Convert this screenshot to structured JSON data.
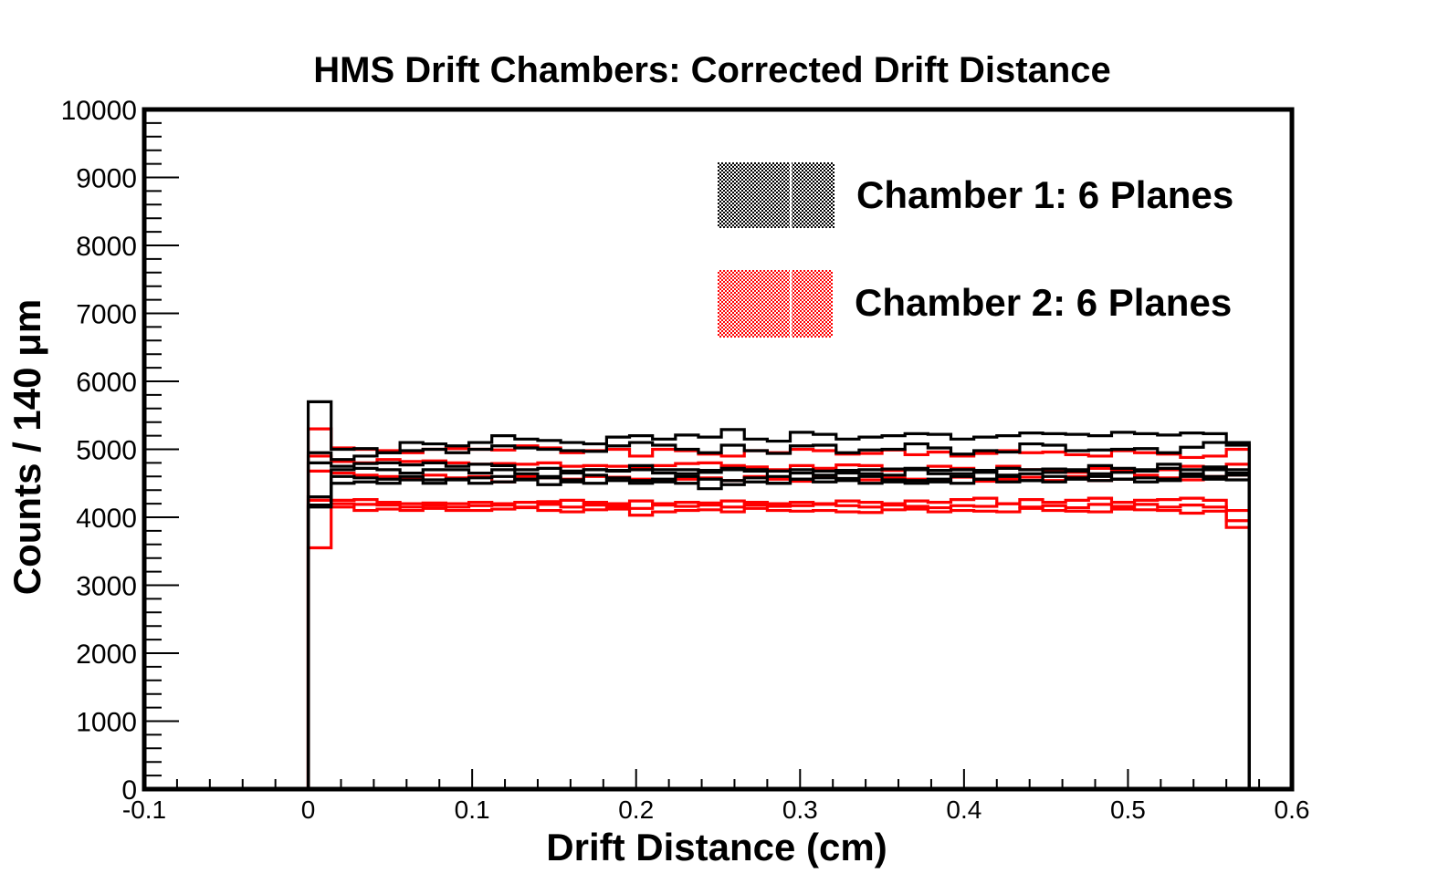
{
  "chart_data": {
    "type": "histogram",
    "title": "HMS Drift Chambers: Corrected Drift Distance",
    "xlabel": "Drift Distance (cm)",
    "ylabel": "Counts / 140 μm",
    "xlim": [
      -0.1,
      0.6
    ],
    "ylim": [
      0,
      10000
    ],
    "x_ticks": [
      "-0.1",
      "0",
      "0.1",
      "0.2",
      "0.3",
      "0.4",
      "0.5",
      "0.6"
    ],
    "y_ticks": [
      "0",
      "1000",
      "2000",
      "3000",
      "4000",
      "5000",
      "6000",
      "7000",
      "8000",
      "9000",
      "10000"
    ],
    "bin_width": 0.014,
    "x_start": 0.0,
    "legend_position": "top-right",
    "legend": [
      {
        "label": "Chamber 1: 6 Planes",
        "color": "#000000"
      },
      {
        "label": "Chamber 2: 6 Planes",
        "color": "#ff0000"
      }
    ],
    "series": [
      {
        "group": 0,
        "color": "#000000",
        "values": [
          5700,
          5000,
          5010,
          4950,
          5100,
          5080,
          5050,
          5100,
          5200,
          5150,
          5130,
          5100,
          5080,
          5180,
          5200,
          5150,
          5210,
          5180,
          5290,
          5150,
          5120,
          5250,
          5220,
          5150,
          5180,
          5200,
          5230,
          5220,
          5150,
          5180,
          5200,
          5240,
          5230,
          5220,
          5200,
          5250,
          5230,
          5210,
          5240,
          5230,
          5100
        ]
      },
      {
        "group": 0,
        "color": "#000000",
        "values": [
          4950,
          4850,
          4900,
          4950,
          4980,
          5000,
          4950,
          5000,
          5050,
          5020,
          5000,
          4980,
          4970,
          5050,
          5100,
          5060,
          5000,
          4950,
          5060,
          4980,
          4940,
          5050,
          5060,
          4950,
          4990,
          5000,
          5080,
          5020,
          4930,
          4980,
          4960,
          5080,
          5060,
          4980,
          4990,
          5000,
          5010,
          4950,
          5030,
          5100,
          5060
        ]
      },
      {
        "group": 0,
        "color": "#000000",
        "values": [
          4800,
          4750,
          4790,
          4800,
          4770,
          4800,
          4750,
          4780,
          4760,
          4700,
          4720,
          4680,
          4700,
          4690,
          4760,
          4700,
          4700,
          4690,
          4720,
          4700,
          4680,
          4700,
          4680,
          4690,
          4700,
          4710,
          4720,
          4690,
          4700,
          4690,
          4720,
          4700,
          4710,
          4700,
          4760,
          4720,
          4700,
          4780,
          4700,
          4740,
          4700
        ]
      },
      {
        "group": 0,
        "color": "#000000",
        "values": [
          4300,
          4700,
          4720,
          4700,
          4650,
          4700,
          4700,
          4650,
          4700,
          4640,
          4600,
          4650,
          4700,
          4680,
          4700,
          4650,
          4640,
          4660,
          4700,
          4680,
          4600,
          4650,
          4620,
          4650,
          4640,
          4620,
          4700,
          4640,
          4640,
          4660,
          4600,
          4640,
          4660,
          4680,
          4600,
          4660,
          4680,
          4720,
          4640,
          4700,
          4650
        ]
      },
      {
        "group": 0,
        "color": "#000000",
        "values": [
          4180,
          4600,
          4580,
          4560,
          4600,
          4550,
          4550,
          4580,
          4600,
          4560,
          4580,
          4550,
          4620,
          4580,
          4540,
          4560,
          4600,
          4420,
          4540,
          4580,
          4500,
          4560,
          4580,
          4570,
          4600,
          4550,
          4500,
          4560,
          4600,
          4560,
          4620,
          4540,
          4600,
          4580,
          4640,
          4560,
          4580,
          4560,
          4620,
          4600,
          4620
        ]
      },
      {
        "group": 0,
        "color": "#000000",
        "values": [
          4150,
          4500,
          4520,
          4500,
          4550,
          4500,
          4560,
          4500,
          4520,
          4550,
          4480,
          4520,
          4500,
          4540,
          4500,
          4520,
          4500,
          4560,
          4480,
          4520,
          4500,
          4560,
          4520,
          4540,
          4500,
          4520,
          4540,
          4520,
          4500,
          4560,
          4520,
          4540,
          4520,
          4560,
          4540,
          4560,
          4520,
          4540,
          4600,
          4560,
          4550
        ]
      },
      {
        "group": 1,
        "color": "#ff0000",
        "values": [
          5300,
          5020,
          5000,
          4980,
          4950,
          5000,
          5010,
          5000,
          4990,
          5050,
          5020,
          4950,
          4980,
          5000,
          4900,
          5000,
          4980,
          4930,
          4900,
          4980,
          4950,
          5000,
          4980,
          4930,
          4940,
          4990,
          4920,
          4960,
          4900,
          4940,
          4980,
          4950,
          4960,
          4920,
          4900,
          4980,
          4950,
          4930,
          4880,
          4900,
          5000
        ]
      },
      {
        "group": 1,
        "color": "#ff0000",
        "values": [
          4900,
          4820,
          4800,
          4850,
          4820,
          4830,
          4800,
          4780,
          4790,
          4780,
          4800,
          4750,
          4760,
          4750,
          4720,
          4760,
          4790,
          4800,
          4760,
          4740,
          4700,
          4760,
          4720,
          4770,
          4760,
          4690,
          4700,
          4750,
          4720,
          4680,
          4750,
          4700,
          4700,
          4660,
          4720,
          4680,
          4680,
          4700,
          4750,
          4720,
          4780
        ]
      },
      {
        "group": 1,
        "color": "#ff0000",
        "values": [
          4680,
          4650,
          4620,
          4600,
          4560,
          4620,
          4580,
          4600,
          4520,
          4600,
          4580,
          4560,
          4600,
          4590,
          4560,
          4550,
          4560,
          4580,
          4540,
          4600,
          4560,
          4530,
          4590,
          4560,
          4550,
          4580,
          4560,
          4540,
          4590,
          4530,
          4560,
          4590,
          4540,
          4600,
          4540,
          4560,
          4620,
          4580,
          4550,
          4600,
          4620
        ]
      },
      {
        "group": 1,
        "color": "#ff0000",
        "values": [
          4300,
          4250,
          4260,
          4220,
          4200,
          4210,
          4200,
          4220,
          4200,
          4220,
          4230,
          4250,
          4220,
          4200,
          4240,
          4200,
          4220,
          4210,
          4240,
          4220,
          4200,
          4220,
          4200,
          4240,
          4220,
          4200,
          4240,
          4220,
          4260,
          4280,
          4200,
          4260,
          4220,
          4250,
          4280,
          4220,
          4250,
          4260,
          4280,
          4250,
          4100
        ]
      },
      {
        "group": 1,
        "color": "#ff0000",
        "values": [
          4250,
          4200,
          4190,
          4180,
          4150,
          4170,
          4150,
          4170,
          4180,
          4150,
          4190,
          4150,
          4180,
          4160,
          4130,
          4180,
          4160,
          4180,
          4150,
          4180,
          4160,
          4170,
          4190,
          4170,
          4150,
          4180,
          4160,
          4140,
          4170,
          4160,
          4200,
          4150,
          4170,
          4140,
          4190,
          4160,
          4190,
          4150,
          4180,
          4150,
          3950
        ]
      },
      {
        "group": 1,
        "color": "#ff0000",
        "values": [
          3550,
          4150,
          4100,
          4120,
          4100,
          4130,
          4100,
          4100,
          4120,
          4140,
          4100,
          4080,
          4110,
          4120,
          4030,
          4080,
          4100,
          4110,
          4080,
          4130,
          4100,
          4090,
          4100,
          4080,
          4070,
          4110,
          4120,
          4080,
          4100,
          4090,
          4080,
          4130,
          4100,
          4090,
          4080,
          4120,
          4110,
          4100,
          4060,
          4090,
          3850
        ]
      }
    ]
  }
}
